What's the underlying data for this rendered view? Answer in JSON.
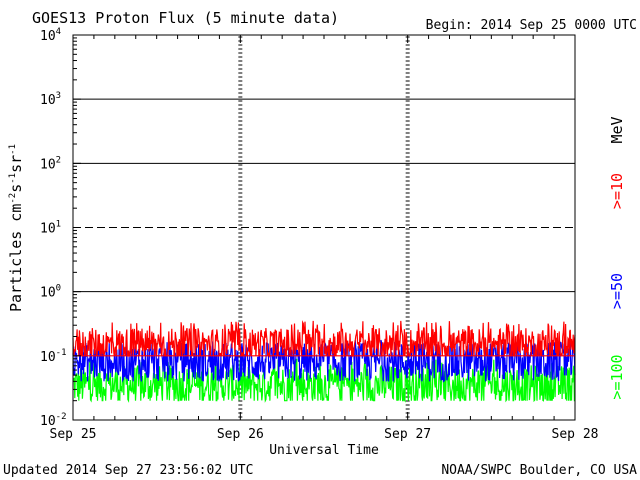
{
  "header": {
    "title": "GOES13 Proton Flux (5 minute data)",
    "begin": "Begin: 2014 Sep 25 0000 UTC"
  },
  "footer": {
    "updated": "Updated 2014 Sep 27 23:56:02 UTC",
    "credit": "NOAA/SWPC Boulder, CO USA"
  },
  "chart_data": {
    "type": "line",
    "title": "GOES13 Proton Flux (5 minute data)",
    "xlabel": "Universal Time",
    "ylabel": "Particles cm⁻²s⁻¹sr⁻¹",
    "ylabel_parts": {
      "base": "Particles cm",
      "e1": "-2",
      "mid1": "s",
      "e2": "-1",
      "mid2": "sr",
      "e3": "-1"
    },
    "yscale": "log",
    "ylim": [
      0.01,
      10000
    ],
    "yticks": [
      {
        "base": "10",
        "exp": "-2",
        "value": 0.01
      },
      {
        "base": "10",
        "exp": "-1",
        "value": 0.1
      },
      {
        "base": "10",
        "exp": "0",
        "value": 1
      },
      {
        "base": "10",
        "exp": "1",
        "value": 10
      },
      {
        "base": "10",
        "exp": "2",
        "value": 100
      },
      {
        "base": "10",
        "exp": "3",
        "value": 1000
      },
      {
        "base": "10",
        "exp": "4",
        "value": 10000
      }
    ],
    "xticks": [
      "Sep 25",
      "Sep 26",
      "Sep 27",
      "Sep 28"
    ],
    "xlim_days": [
      0,
      3
    ],
    "solid_hlines": [
      1,
      100,
      1000
    ],
    "dashed_hlines": [
      10
    ],
    "reference_hlines": [
      {
        "value": 0.1,
        "color": "#ff0000"
      }
    ],
    "right_label": "MeV",
    "series": [
      {
        "name": ">=10",
        "color": "#ff0000",
        "median": 0.15,
        "min": 0.1,
        "max": 0.35
      },
      {
        "name": ">=50",
        "color": "#0000ff",
        "median": 0.08,
        "min": 0.04,
        "max": 0.18
      },
      {
        "name": ">=100",
        "color": "#00ff00",
        "median": 0.035,
        "min": 0.02,
        "max": 0.09
      }
    ]
  }
}
